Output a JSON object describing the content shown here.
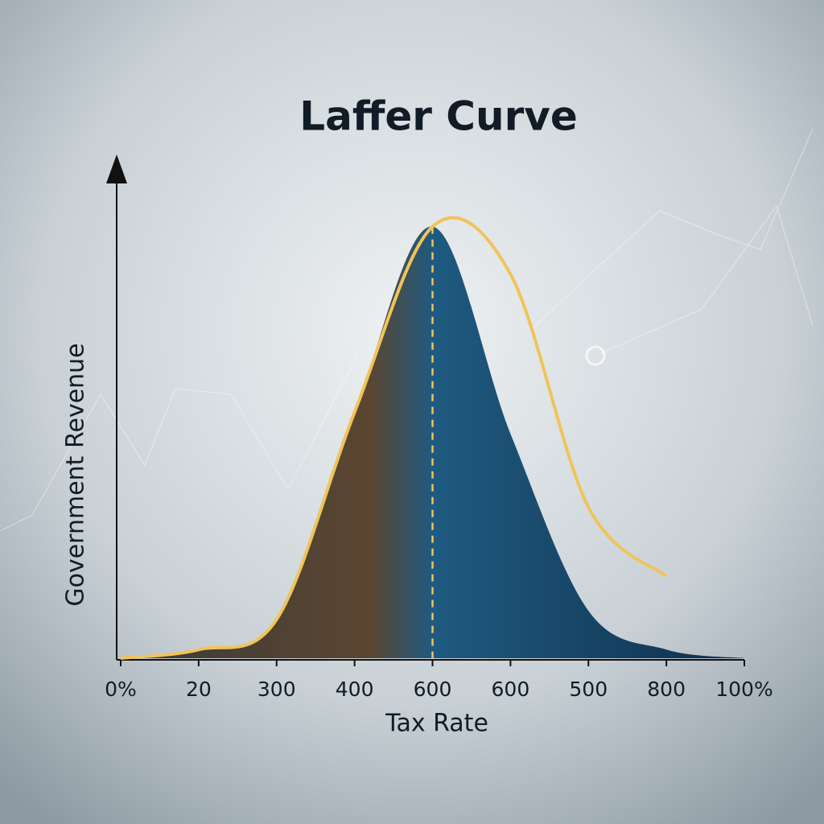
{
  "chart_data": {
    "type": "line",
    "title": "Laffer Curve",
    "x_label": "Tax Rate",
    "y_label": "Government Revenue",
    "categories": [
      "0%",
      "20",
      "300",
      "400",
      "600",
      "600",
      "500",
      "800",
      "100%"
    ],
    "series": [
      {
        "color": "#1a4f73",
        "fill": true,
        "values": [
          0,
          2,
          9,
          57,
          100,
          52,
          11,
          2,
          0
        ]
      },
      {
        "color": "#f0c45a",
        "fill": false,
        "values": [
          0,
          2,
          9,
          57,
          100,
          89,
          35,
          19,
          null
        ]
      }
    ],
    "ylim": [
      0,
      110
    ]
  }
}
